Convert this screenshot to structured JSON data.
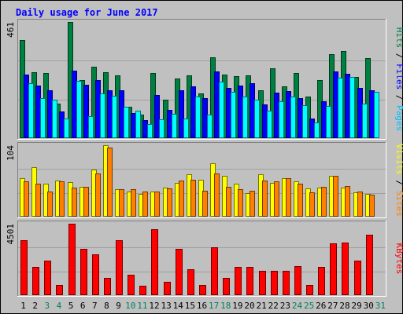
{
  "chart_data": {
    "type": "bar",
    "title": "Daily usage for June 2017",
    "days": [
      "1",
      "2",
      "3",
      "4",
      "5",
      "6",
      "7",
      "8",
      "9",
      "10",
      "11",
      "12",
      "13",
      "14",
      "15",
      "16",
      "17",
      "18",
      "19",
      "20",
      "21",
      "22",
      "23",
      "24",
      "25",
      "26",
      "27",
      "28",
      "29",
      "30",
      "31"
    ],
    "weekend_days": [
      "3",
      "4",
      "10",
      "11",
      "17",
      "18",
      "24",
      "25",
      "31"
    ],
    "panels": [
      {
        "id": "hits",
        "max_label": "461",
        "ymax": 461,
        "legend": [
          {
            "text": "Hits",
            "color": "#008040"
          },
          {
            "text": " / ",
            "color": "#000000"
          },
          {
            "text": "Files",
            "color": "#0000ff"
          },
          {
            "text": " / ",
            "color": "#000000"
          },
          {
            "text": "Pages",
            "color": "#00c0ff"
          }
        ],
        "series": [
          {
            "name": "Hits",
            "color": "#008040",
            "values": [
              390,
              262,
              260,
              136,
              461,
              232,
              282,
              262,
              250,
              124,
              93,
              260,
              152,
              236,
              250,
              176,
              320,
              252,
              245,
              250,
              190,
              276,
              206,
              258,
              165,
              232,
              334,
              345,
              242,
              319,
              0
            ]
          },
          {
            "name": "Files",
            "color": "#0000ff",
            "values": [
              252,
              208,
              190,
              105,
              268,
              213,
              230,
              190,
              190,
              100,
              72,
              170,
              112,
              190,
              205,
              160,
              265,
              200,
              210,
              218,
              135,
              180,
              188,
              158,
              79,
              147,
              265,
              255,
              200,
              190,
              0
            ]
          },
          {
            "name": "Pages",
            "color": "#00ffff",
            "values": [
              219,
              159,
              153,
              79,
              228,
              87,
              176,
              167,
              124,
              110,
              55,
              76,
              97,
              78,
              165,
              95,
              224,
              184,
              164,
              152,
              108,
              147,
              165,
              130,
              62,
              127,
              241,
              244,
              136,
              184,
              0
            ]
          }
        ]
      },
      {
        "id": "visits",
        "max_label": "104",
        "ymax": 104,
        "legend": [
          {
            "text": "Visits",
            "color": "#ffff00"
          },
          {
            "text": " / ",
            "color": "#000000"
          },
          {
            "text": "Sites",
            "color": "#ff8000"
          }
        ],
        "series": [
          {
            "name": "Visits",
            "color": "#ffff00",
            "values": [
              56,
              72,
              48,
              52,
              50,
              43,
              69,
              104,
              40,
              36,
              33,
              36,
              42,
              49,
              62,
              54,
              78,
              59,
              48,
              34,
              62,
              49,
              56,
              51,
              41,
              42,
              59,
              42,
              35,
              33,
              0
            ]
          },
          {
            "name": "Sites",
            "color": "#ff8000",
            "values": [
              51,
              48,
              37,
              51,
              42,
              43,
              63,
              100,
              40,
              40,
              36,
              37,
              41,
              53,
              54,
              38,
              63,
              43,
              40,
              38,
              52,
              51,
              56,
              48,
              35,
              43,
              59,
              44,
              37,
              32,
              0
            ]
          }
        ]
      },
      {
        "id": "kbytes",
        "max_label": "4501",
        "ymax": 4501,
        "legend": [
          {
            "text": "KBytes",
            "color": "#ff0000"
          }
        ],
        "series": [
          {
            "name": "KBytes",
            "color": "#ff0000",
            "values": [
              3480,
              1790,
              2190,
              640,
              4501,
              2900,
              2570,
              1110,
              3440,
              1270,
              612,
              4140,
              860,
              2900,
              1650,
              660,
              3030,
              1110,
              1790,
              1790,
              1540,
              1540,
              1540,
              1830,
              638,
              1790,
              3260,
              3300,
              2200,
              3810,
              0
            ]
          }
        ]
      }
    ]
  }
}
